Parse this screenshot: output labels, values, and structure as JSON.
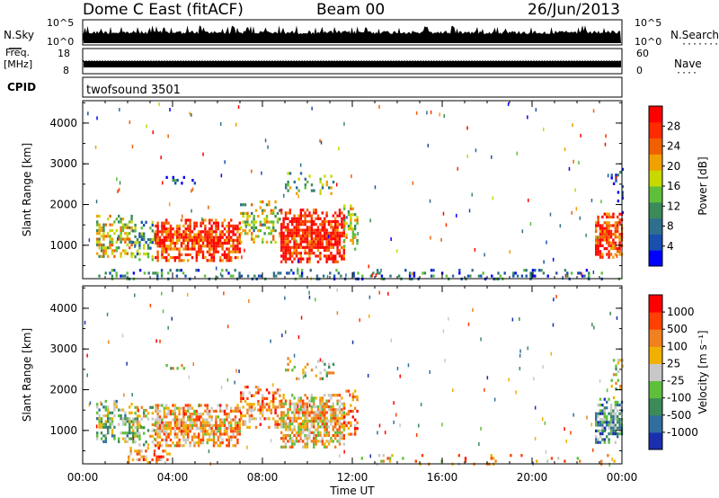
{
  "header": {
    "station": "Dome C East (fitACF)",
    "beam": "Beam 00",
    "date": "26/Jun/2013"
  },
  "nsky_panel": {
    "left_label": "N.Sky",
    "right_label": "N.Search",
    "right_dots": "·······",
    "left_ticks": [
      "10^5",
      "10^0"
    ],
    "right_ticks": [
      "10^5",
      "10^0"
    ]
  },
  "freq_panel": {
    "left_label": "Freq.",
    "left_unit": "[MHz]",
    "right_label": "Nave",
    "right_dots": "····",
    "left_ticks": [
      "18",
      "8"
    ],
    "right_ticks": [
      "60",
      "0"
    ]
  },
  "cpid_panel": {
    "label": "CPID",
    "program": "twofsound 3501"
  },
  "chart_data": [
    {
      "type": "heatmap",
      "name": "power",
      "ylabel": "Slant Range [km]",
      "ylim": [
        180,
        4550
      ],
      "yticks": [
        "1000",
        "2000",
        "3000",
        "4000"
      ],
      "xlim_hours": [
        0,
        24
      ],
      "xticks": [
        "00:00",
        "04:00",
        "08:00",
        "12:00",
        "16:00",
        "20:00",
        "00:00"
      ],
      "colorbar": {
        "label": "Power [dB]",
        "ticks": [
          "28",
          "24",
          "20",
          "16",
          "12",
          "8",
          "4"
        ],
        "colors": [
          "#0000ff",
          "#1a4fb0",
          "#2f6e8e",
          "#3a8a5a",
          "#5fbf3a",
          "#c8d800",
          "#f0a000",
          "#f06000",
          "#ff2a00",
          "#ff0000"
        ]
      },
      "regions": [
        {
          "t0": 0.6,
          "t1": 2.2,
          "r0": 750,
          "r1": 1750,
          "level": 0.55,
          "density": 0.6
        },
        {
          "t0": 2.2,
          "t1": 3.2,
          "r0": 650,
          "r1": 1600,
          "level": 0.35,
          "density": 0.45
        },
        {
          "t0": 3.2,
          "t1": 7.0,
          "r0": 650,
          "r1": 1650,
          "level": 0.85,
          "density": 0.9
        },
        {
          "t0": 7.0,
          "t1": 8.8,
          "r0": 1100,
          "r1": 2100,
          "level": 0.5,
          "density": 0.55
        },
        {
          "t0": 8.8,
          "t1": 11.6,
          "r0": 620,
          "r1": 1900,
          "level": 0.9,
          "density": 0.92
        },
        {
          "t0": 11.6,
          "t1": 12.2,
          "r0": 900,
          "r1": 2000,
          "level": 0.5,
          "density": 0.4
        },
        {
          "t0": 9.0,
          "t1": 11.2,
          "r0": 2300,
          "r1": 2800,
          "level": 0.45,
          "density": 0.25
        },
        {
          "t0": 3.6,
          "t1": 5.2,
          "r0": 2500,
          "r1": 2700,
          "level": 0.2,
          "density": 0.25
        },
        {
          "t0": 22.8,
          "t1": 24.0,
          "r0": 700,
          "r1": 1800,
          "level": 0.85,
          "density": 0.85
        },
        {
          "t0": 23.5,
          "t1": 24.0,
          "r0": 1800,
          "r1": 2900,
          "level": 0.15,
          "density": 0.3
        },
        {
          "t0": 0.5,
          "t1": 24.0,
          "r0": 200,
          "r1": 420,
          "level": 0.25,
          "density": 0.25
        }
      ]
    },
    {
      "type": "heatmap",
      "name": "velocity",
      "ylabel": "Slant Range [km]",
      "ylim": [
        180,
        4550
      ],
      "yticks": [
        "1000",
        "2000",
        "3000",
        "4000"
      ],
      "xlim_hours": [
        0,
        24
      ],
      "xticks": [
        "00:00",
        "04:00",
        "08:00",
        "12:00",
        "16:00",
        "20:00",
        "00:00"
      ],
      "xlabel": "Time UT",
      "colorbar": {
        "label": "Velocity [m s⁻¹]",
        "ticks": [
          "1000",
          "500",
          "100",
          "25",
          "-25",
          "-100",
          "-500",
          "-1000"
        ],
        "colors": [
          "#1a2fb0",
          "#2f6e9e",
          "#3a8a5a",
          "#5fbf3a",
          "#c8c8c8",
          "#f0b000",
          "#f08020",
          "#ff4000",
          "#ff0000"
        ]
      },
      "regions": [
        {
          "t0": 0.6,
          "t1": 2.2,
          "r0": 750,
          "r1": 1750,
          "level": 0.4,
          "density": 0.6
        },
        {
          "t0": 2.2,
          "t1": 3.2,
          "r0": 650,
          "r1": 1600,
          "level": 0.5,
          "density": 0.45
        },
        {
          "t0": 3.2,
          "t1": 7.0,
          "r0": 650,
          "r1": 1650,
          "level": 0.65,
          "density": 0.9
        },
        {
          "t0": 7.0,
          "t1": 8.8,
          "r0": 1100,
          "r1": 2100,
          "level": 0.7,
          "density": 0.55
        },
        {
          "t0": 8.8,
          "t1": 11.6,
          "r0": 620,
          "r1": 1900,
          "level": 0.6,
          "density": 0.92
        },
        {
          "t0": 11.6,
          "t1": 12.2,
          "r0": 900,
          "r1": 2000,
          "level": 0.75,
          "density": 0.4
        },
        {
          "t0": 9.0,
          "t1": 11.2,
          "r0": 2300,
          "r1": 2800,
          "level": 0.5,
          "density": 0.25
        },
        {
          "t0": 3.6,
          "t1": 5.2,
          "r0": 2500,
          "r1": 2700,
          "level": 0.5,
          "density": 0.25
        },
        {
          "t0": 22.8,
          "t1": 24.0,
          "r0": 700,
          "r1": 1800,
          "level": 0.3,
          "density": 0.85
        },
        {
          "t0": 23.5,
          "t1": 24.0,
          "r0": 1800,
          "r1": 2900,
          "level": 0.5,
          "density": 0.3
        },
        {
          "t0": 2.0,
          "t1": 4.0,
          "r0": 200,
          "r1": 600,
          "level": 0.7,
          "density": 0.35
        },
        {
          "t0": 12.0,
          "t1": 24.0,
          "r0": 200,
          "r1": 420,
          "level": 0.65,
          "density": 0.12
        }
      ]
    }
  ]
}
